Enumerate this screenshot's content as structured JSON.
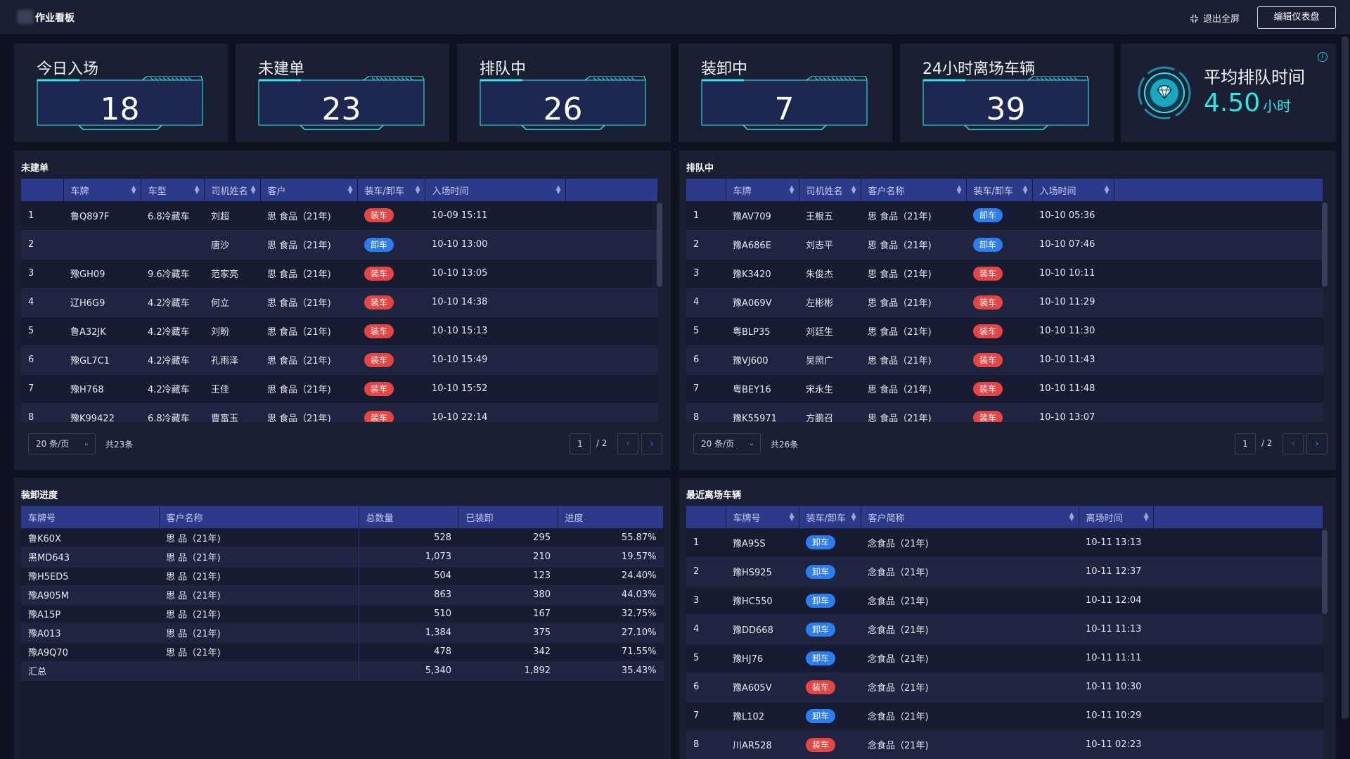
{
  "header": {
    "title": "作业看板",
    "exit_label": "退出全屏",
    "edit_label": "编辑仪表盘"
  },
  "kpis": [
    {
      "label": "今日入场",
      "value": "18"
    },
    {
      "label": "未建单",
      "value": "23"
    },
    {
      "label": "排队中",
      "value": "26"
    },
    {
      "label": "装卸中",
      "value": "7"
    },
    {
      "label": "24小时离场车辆",
      "value": "39"
    }
  ],
  "avg_queue": {
    "label": "平均排队时间",
    "value": "4.50",
    "unit": "小时",
    "info": "i"
  },
  "tags": {
    "load": "装车",
    "unload": "卸车"
  },
  "unbuilt": {
    "title": "未建单",
    "columns": [
      "",
      "车牌",
      "车型",
      "司机姓名",
      "客户",
      "装车/卸车",
      "入场时间",
      ""
    ],
    "rows": [
      {
        "no": "1",
        "plate": "鲁Q897F",
        "type": "6.8冷藏车",
        "driver": "刘超",
        "client": "思 食品（21年)",
        "op": "load",
        "time": "10-09 15:11"
      },
      {
        "no": "2",
        "plate": "",
        "type": "",
        "driver": "唐沙",
        "client": "思 食品（21年)",
        "op": "unload",
        "time": "10-10 13:00"
      },
      {
        "no": "3",
        "plate": "豫GH09",
        "type": "9.6冷藏车",
        "driver": "范家亮",
        "client": "思 食品（21年)",
        "op": "load",
        "time": "10-10 13:05"
      },
      {
        "no": "4",
        "plate": "辽H6G9",
        "type": "4.2冷藏车",
        "driver": "何立",
        "client": "思 食品（21年)",
        "op": "load",
        "time": "10-10 14:38"
      },
      {
        "no": "5",
        "plate": "鲁A32JK",
        "type": "4.2冷藏车",
        "driver": "刘盼",
        "client": "思 食品（21年)",
        "op": "load",
        "time": "10-10 15:13"
      },
      {
        "no": "6",
        "plate": "豫GL7C1",
        "type": "4.2冷藏车",
        "driver": "孔雨泽",
        "client": "思 食品（21年)",
        "op": "load",
        "time": "10-10 15:49"
      },
      {
        "no": "7",
        "plate": "豫H768",
        "type": "4.2冷藏车",
        "driver": "王佳",
        "client": "思 食品（21年)",
        "op": "load",
        "time": "10-10 15:52"
      },
      {
        "no": "8",
        "plate": "豫K99422",
        "type": "6.8冷藏车",
        "driver": "曹富玉",
        "client": "思 食品（21年)",
        "op": "load",
        "time": "10-10 22:14"
      }
    ],
    "pager": {
      "size": "20 条/页",
      "total": "共23条",
      "page": "1",
      "pages": "/ 2"
    }
  },
  "queue": {
    "title": "排队中",
    "columns": [
      "",
      "车牌",
      "司机姓名",
      "客户名称",
      "装车/卸车",
      "入场时间",
      ""
    ],
    "rows": [
      {
        "no": "1",
        "plate": "豫AV709",
        "driver": "王根五",
        "client": "思 食品（21年)",
        "op": "unload",
        "time": "10-10 05:36"
      },
      {
        "no": "2",
        "plate": "豫A686E",
        "driver": "刘志平",
        "client": "思 食品（21年)",
        "op": "unload",
        "time": "10-10 07:46"
      },
      {
        "no": "3",
        "plate": "豫K3420",
        "driver": "朱俊杰",
        "client": "思 食品（21年)",
        "op": "load",
        "time": "10-10 10:11"
      },
      {
        "no": "4",
        "plate": "豫A069V",
        "driver": "左彬彬",
        "client": "思 食品（21年)",
        "op": "load",
        "time": "10-10 11:29"
      },
      {
        "no": "5",
        "plate": "粤BLP35",
        "driver": "刘廷生",
        "client": "思 食品（21年)",
        "op": "load",
        "time": "10-10 11:30"
      },
      {
        "no": "6",
        "plate": "豫VJ600",
        "driver": "吴照广",
        "client": "思 食品（21年)",
        "op": "load",
        "time": "10-10 11:43"
      },
      {
        "no": "7",
        "plate": "粤BEY16",
        "driver": "宋永生",
        "client": "思 食品（21年)",
        "op": "load",
        "time": "10-10 11:48"
      },
      {
        "no": "8",
        "plate": "豫K55971",
        "driver": "方鹏召",
        "client": "思 食品（21年)",
        "op": "load",
        "time": "10-10 13:07"
      }
    ],
    "pager": {
      "size": "20 条/页",
      "total": "共26条",
      "page": "1",
      "pages": "/ 2"
    }
  },
  "progress": {
    "title": "装卸进度",
    "columns": [
      "车牌号",
      "客户名称",
      "总数量",
      "已装卸",
      "进度"
    ],
    "rows": [
      {
        "plate": "鲁K60X",
        "client": "思 品（21年)",
        "total": "528",
        "done": "295",
        "pct": "55.87%"
      },
      {
        "plate": "黑MD643",
        "client": "思 品（21年)",
        "total": "1,073",
        "done": "210",
        "pct": "19.57%"
      },
      {
        "plate": "豫H5ED5",
        "client": "思 品（21年)",
        "total": "504",
        "done": "123",
        "pct": "24.40%"
      },
      {
        "plate": "豫A905M",
        "client": "思 品（21年)",
        "total": "863",
        "done": "380",
        "pct": "44.03%"
      },
      {
        "plate": "豫A15P",
        "client": "思 品（21年)",
        "total": "510",
        "done": "167",
        "pct": "32.75%"
      },
      {
        "plate": "豫A013",
        "client": "思 品（21年)",
        "total": "1,384",
        "done": "375",
        "pct": "27.10%"
      },
      {
        "plate": "豫A9Q70",
        "client": "思 品（21年)",
        "total": "478",
        "done": "342",
        "pct": "71.55%"
      }
    ],
    "summary": {
      "label": "汇总",
      "total": "5,340",
      "done": "1,892",
      "pct": "35.43%"
    }
  },
  "departed": {
    "title": "最近离场车辆",
    "columns": [
      "",
      "车牌号",
      "装车/卸车",
      "客户简称",
      "离场时间",
      ""
    ],
    "rows": [
      {
        "no": "1",
        "plate": "豫A95S",
        "op": "unload",
        "client": "念食品（21年)",
        "time": "10-11 13:13"
      },
      {
        "no": "2",
        "plate": "豫HS925",
        "op": "unload",
        "client": "念食品（21年)",
        "time": "10-11 12:37"
      },
      {
        "no": "3",
        "plate": "豫HC550",
        "op": "unload",
        "client": "念食品（21年)",
        "time": "10-11 12:04"
      },
      {
        "no": "4",
        "plate": "豫DD668",
        "op": "unload",
        "client": "念食品（21年)",
        "time": "10-11 11:13"
      },
      {
        "no": "5",
        "plate": "豫HJ76",
        "op": "unload",
        "client": "念食品（21年)",
        "time": "10-11 11:11"
      },
      {
        "no": "6",
        "plate": "豫A605V",
        "op": "load",
        "client": "念食品（21年)",
        "time": "10-11 10:30"
      },
      {
        "no": "7",
        "plate": "豫L102",
        "op": "unload",
        "client": "念食品（21年)",
        "time": "10-11 10:29"
      },
      {
        "no": "8",
        "plate": "川AR528",
        "op": "load",
        "client": "念食品（21年)",
        "time": "10-11 02:23"
      }
    ]
  },
  "colors": {
    "accent": "#2ee6e6",
    "header_bg": "#2c3a8a",
    "load": "#e64545",
    "unload": "#2c7ef0",
    "panel": "#1b1f33"
  }
}
